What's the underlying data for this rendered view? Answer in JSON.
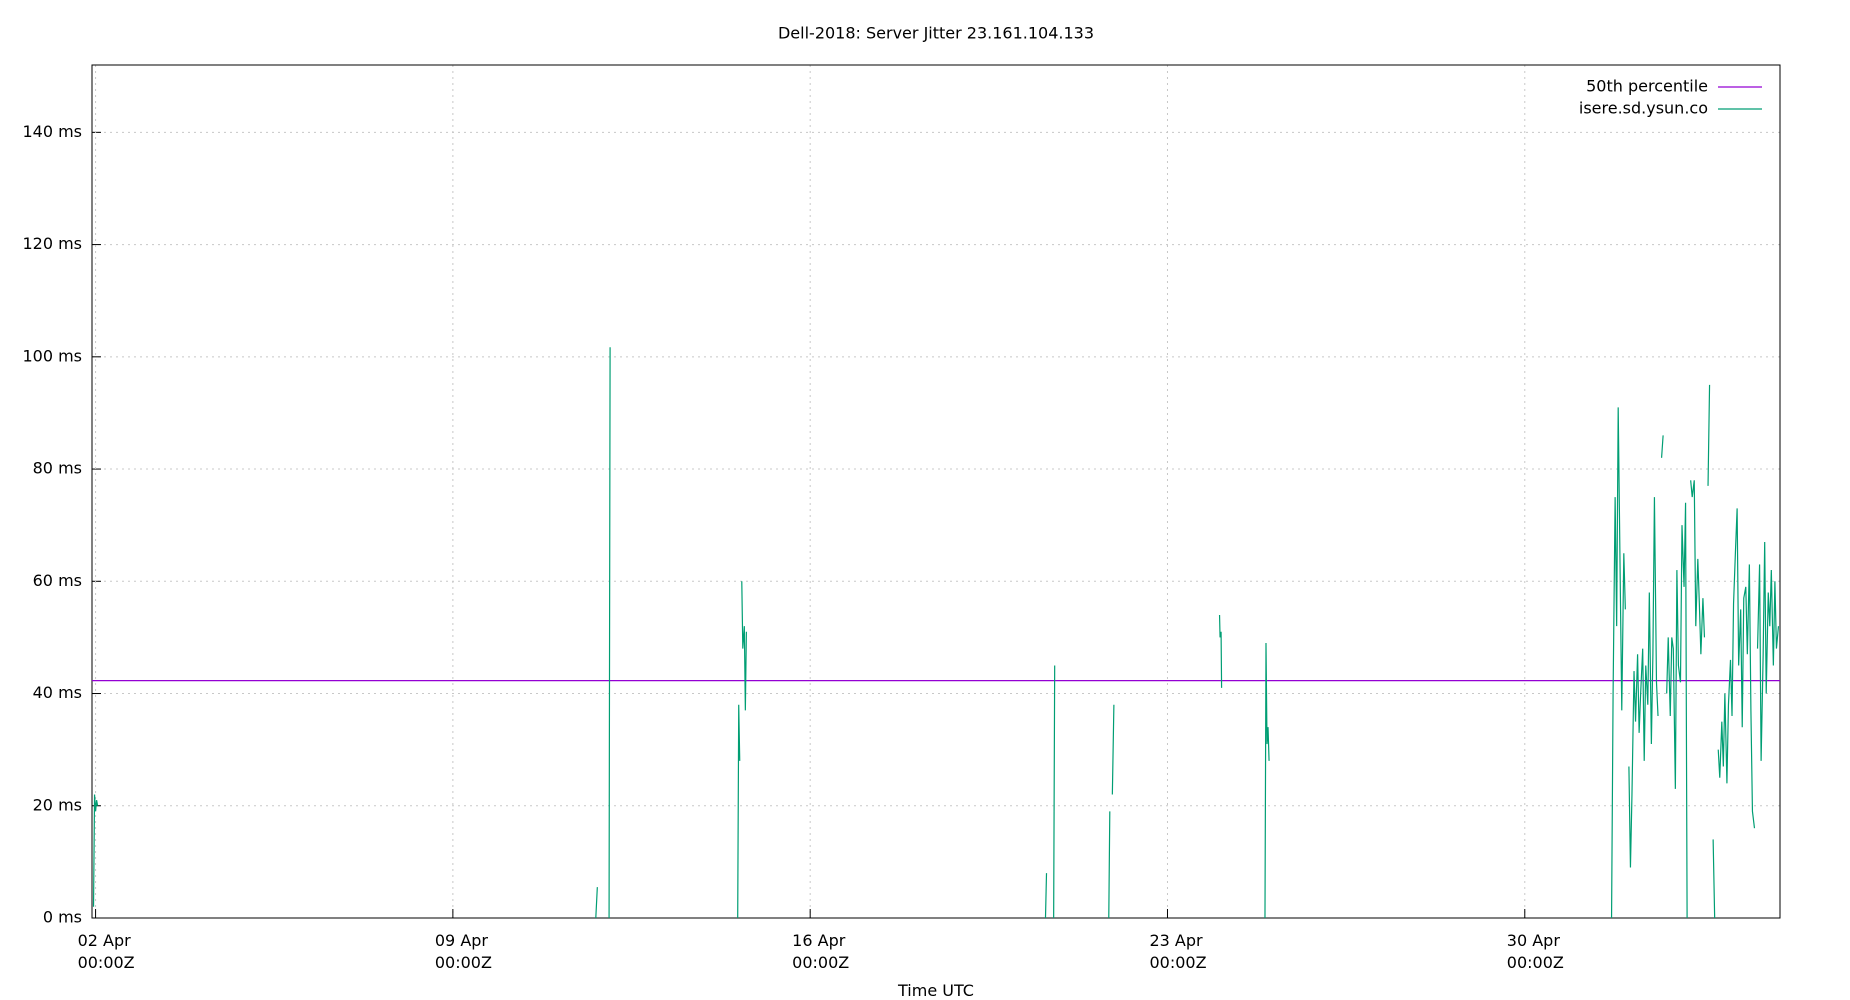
{
  "chart_data": {
    "type": "line",
    "title": "Dell-2018: Server Jitter 23.161.104.133",
    "x_label": "Time UTC",
    "xlim": [
      1.93,
      35.0
    ],
    "xticks": [
      {
        "value": 2,
        "label": "02 Apr\n00:00Z"
      },
      {
        "value": 9,
        "label": "09 Apr\n00:00Z"
      },
      {
        "value": 16,
        "label": "16 Apr\n00:00Z"
      },
      {
        "value": 23,
        "label": "23 Apr\n00:00Z"
      },
      {
        "value": 30,
        "label": "30 Apr\n00:00Z"
      }
    ],
    "ylim": [
      0,
      152
    ],
    "yticks": [
      {
        "value": 0,
        "label": "0 ms"
      },
      {
        "value": 20,
        "label": "20 ms"
      },
      {
        "value": 40,
        "label": "40 ms"
      },
      {
        "value": 60,
        "label": "60 ms"
      },
      {
        "value": 80,
        "label": "80 ms"
      },
      {
        "value": 100,
        "label": "100 ms"
      },
      {
        "value": 120,
        "label": "120 ms"
      },
      {
        "value": 140,
        "label": "140 ms"
      }
    ],
    "grid": true,
    "legend": "top-right",
    "series": [
      {
        "name": "50th percentile",
        "color": "#9400d3",
        "x": [
          1.93,
          35.0
        ],
        "values": [
          42.3,
          42.3
        ]
      },
      {
        "name": "isere.sd.ysun.co",
        "color": "#009e73",
        "x": [
          1.96,
          1.98,
          2.0,
          2.02,
          2.04,
          6.0,
          11.8,
          11.83,
          12.0,
          12.06,
          12.08,
          13.0,
          14.58,
          14.6,
          14.62,
          14.64,
          14.66,
          14.68,
          14.71,
          14.73,
          14.75,
          17.0,
          20.61,
          20.63,
          20.7,
          20.77,
          20.79,
          21.0,
          21.85,
          21.87,
          21.9,
          21.92,
          21.95,
          23.0,
          24.02,
          24.03,
          24.05,
          24.06,
          24.5,
          24.91,
          24.93,
          24.95,
          24.97,
          24.99,
          28.0,
          31.7,
          31.73,
          31.77,
          31.8,
          31.83,
          31.87,
          31.9,
          31.94,
          31.97,
          32.0,
          32.04,
          32.07,
          32.1,
          32.14,
          32.17,
          32.21,
          32.24,
          32.27,
          32.31,
          32.34,
          32.37,
          32.41,
          32.44,
          32.48,
          32.51,
          32.54,
          32.58,
          32.61,
          32.64,
          32.68,
          32.71,
          32.74,
          32.78,
          32.81,
          32.85,
          32.88,
          32.91,
          32.95,
          32.98,
          33.01,
          33.05,
          33.08,
          33.12,
          33.15,
          33.18,
          33.22,
          33.25,
          33.28,
          33.32,
          33.35,
          33.39,
          33.42,
          33.45,
          33.49,
          33.52,
          33.55,
          33.59,
          33.62,
          33.65,
          33.69,
          33.72,
          33.76,
          33.79,
          33.82,
          33.86,
          33.89,
          33.92,
          33.96,
          33.99,
          34.03,
          34.06,
          34.09,
          34.13,
          34.16,
          34.19,
          34.23,
          34.26,
          34.29,
          34.33,
          34.36,
          34.4,
          34.43,
          34.46,
          34.5,
          34.53,
          34.56,
          34.6,
          34.63,
          34.67,
          34.7,
          34.73,
          34.77,
          34.8,
          34.83,
          34.87,
          34.9,
          34.93,
          34.97
        ],
        "values": [
          2,
          22,
          19,
          21,
          20,
          null,
          0,
          5.5,
          null,
          0,
          101.7,
          null,
          0,
          38,
          28,
          null,
          60,
          48,
          52,
          37,
          51,
          null,
          0,
          8,
          null,
          0,
          45,
          null,
          0,
          19,
          null,
          22,
          38,
          null,
          54,
          50,
          51,
          41,
          null,
          0,
          49,
          31,
          34,
          28,
          null,
          0,
          40,
          75,
          52,
          91,
          60,
          37,
          65,
          55,
          null,
          27,
          9,
          22,
          44,
          35,
          47,
          33,
          40,
          48,
          28,
          45,
          38,
          58,
          31,
          47,
          75,
          42,
          36,
          null,
          82,
          86,
          null,
          40,
          50,
          36,
          50,
          48,
          23,
          62,
          45,
          42,
          70,
          59,
          74,
          0,
          null,
          78,
          75,
          78,
          52,
          64,
          56,
          47,
          57,
          50,
          null,
          77,
          95,
          null,
          14,
          0,
          null,
          30,
          25,
          35,
          27,
          40,
          24,
          38,
          46,
          36,
          56,
          66,
          73,
          45,
          55,
          34,
          57,
          59,
          47,
          63,
          37,
          19,
          16,
          null,
          48,
          63,
          28,
          47,
          67,
          40,
          58,
          52,
          62,
          45,
          60,
          48,
          52
        ]
      }
    ]
  }
}
